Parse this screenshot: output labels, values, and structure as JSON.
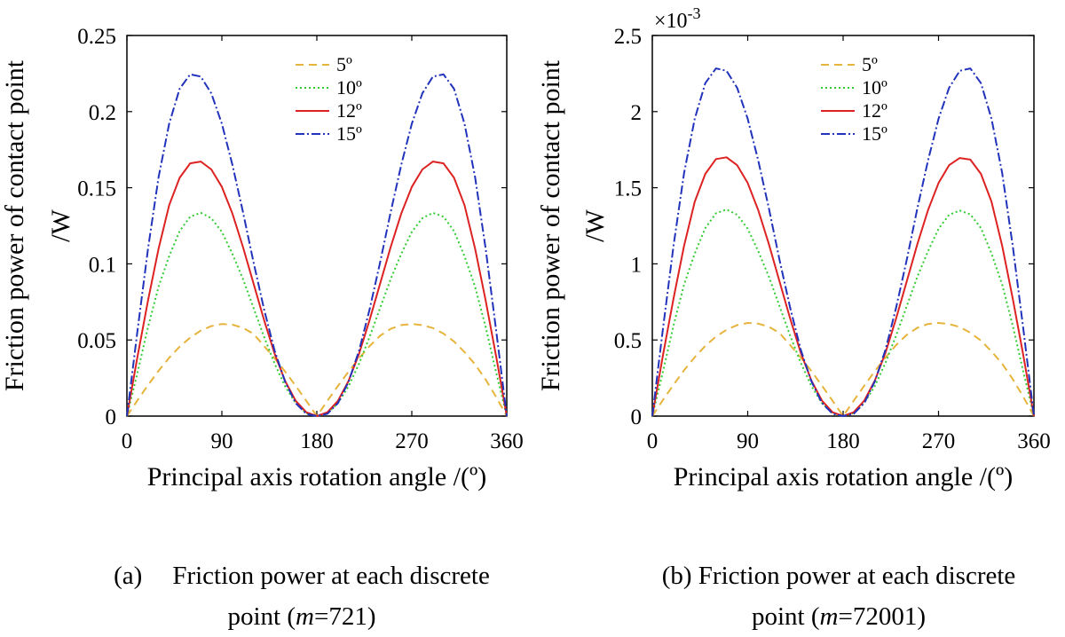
{
  "chart_data": [
    {
      "type": "line",
      "xlabel": "Principal axis rotation angle /(º)",
      "ylabel_line1": "Friction power of contact point",
      "ylabel_line2": "/W",
      "xlim": [
        0,
        360
      ],
      "ylim": [
        0,
        0.25
      ],
      "xticks": [
        0,
        90,
        180,
        270,
        360
      ],
      "xtick_labels": [
        "0",
        "90",
        "180",
        "270",
        "360"
      ],
      "yticks": [
        0,
        0.05,
        0.1,
        0.15,
        0.2,
        0.25
      ],
      "ytick_labels": [
        "0",
        "0.05",
        "0.1",
        "0.15",
        "0.2",
        "0.25"
      ],
      "exponent_label": "",
      "grid": false,
      "legend_position": "top-center",
      "x": [
        0,
        10,
        20,
        30,
        40,
        50,
        60,
        70,
        80,
        90,
        100,
        110,
        120,
        130,
        140,
        150,
        160,
        170,
        180,
        190,
        200,
        210,
        220,
        230,
        240,
        250,
        260,
        270,
        280,
        290,
        300,
        310,
        320,
        330,
        340,
        350,
        360
      ],
      "series": [
        {
          "name": "5º",
          "color": "#e6b43c",
          "dash": "9,6",
          "values": [
            0,
            0.0104,
            0.0204,
            0.0298,
            0.0383,
            0.0456,
            0.0516,
            0.0561,
            0.0591,
            0.0605,
            0.06,
            0.058,
            0.054,
            0.046,
            0.038,
            0.0292,
            0.0198,
            0.01,
            0.0,
            0.01,
            0.0198,
            0.0292,
            0.038,
            0.046,
            0.0528,
            0.0573,
            0.0598,
            0.0605,
            0.0598,
            0.0578,
            0.0542,
            0.049,
            0.042,
            0.034,
            0.024,
            0.0125,
            0
          ]
        },
        {
          "name": "10º",
          "color": "#33cc33",
          "dash": "2,3",
          "values": [
            0,
            0.0285,
            0.0585,
            0.085,
            0.105,
            0.1215,
            0.131,
            0.1335,
            0.13,
            0.121,
            0.1065,
            0.09,
            0.071,
            0.052,
            0.0345,
            0.0195,
            0.0085,
            0.002,
            0.0,
            0.002,
            0.0085,
            0.0195,
            0.0345,
            0.052,
            0.071,
            0.09,
            0.1065,
            0.121,
            0.13,
            0.1335,
            0.131,
            0.1215,
            0.105,
            0.085,
            0.0585,
            0.0285,
            0
          ]
        },
        {
          "name": "12º",
          "color": "#dd2222",
          "dash": "",
          "values": [
            0,
            0.039,
            0.076,
            0.11,
            0.1385,
            0.1565,
            0.166,
            0.1672,
            0.162,
            0.1505,
            0.133,
            0.111,
            0.087,
            0.063,
            0.041,
            0.023,
            0.01,
            0.0025,
            0.0,
            0.0025,
            0.01,
            0.023,
            0.041,
            0.063,
            0.087,
            0.111,
            0.133,
            0.1505,
            0.162,
            0.1672,
            0.166,
            0.1565,
            0.1385,
            0.11,
            0.076,
            0.039,
            0
          ]
        },
        {
          "name": "15º",
          "color": "#2233bb",
          "dash": "10,3,2,3",
          "values": [
            0,
            0.056,
            0.11,
            0.157,
            0.192,
            0.215,
            0.2245,
            0.223,
            0.212,
            0.192,
            0.165,
            0.134,
            0.101,
            0.07,
            0.043,
            0.0225,
            0.0085,
            0.0015,
            0.0,
            0.0015,
            0.0085,
            0.0225,
            0.043,
            0.07,
            0.101,
            0.134,
            0.165,
            0.192,
            0.212,
            0.223,
            0.2245,
            0.215,
            0.192,
            0.157,
            0.11,
            0.056,
            0
          ]
        }
      ]
    },
    {
      "type": "line",
      "xlabel": "Principal axis rotation angle /(º)",
      "ylabel_line1": "Friction power of contact point",
      "ylabel_line2": "/W",
      "xlim": [
        0,
        360
      ],
      "ylim": [
        0,
        2.5
      ],
      "xticks": [
        0,
        90,
        180,
        270,
        360
      ],
      "xtick_labels": [
        "0",
        "90",
        "180",
        "270",
        "360"
      ],
      "yticks": [
        0,
        0.5,
        1,
        1.5,
        2,
        2.5
      ],
      "ytick_labels": [
        "0",
        "0.5",
        "1",
        "1.5",
        "2",
        "2.5"
      ],
      "exponent_label": "×10",
      "exponent_power": "-3",
      "grid": false,
      "legend_position": "top-center",
      "x": [
        0,
        10,
        20,
        30,
        40,
        50,
        60,
        70,
        80,
        90,
        100,
        110,
        120,
        130,
        140,
        150,
        160,
        170,
        180,
        190,
        200,
        210,
        220,
        230,
        240,
        250,
        260,
        270,
        280,
        290,
        300,
        310,
        320,
        330,
        340,
        350,
        360
      ],
      "series": [
        {
          "name": "5º",
          "color": "#e6b43c",
          "dash": "9,6",
          "values": [
            0,
            0.105,
            0.206,
            0.301,
            0.387,
            0.461,
            0.522,
            0.567,
            0.598,
            0.612,
            0.607,
            0.587,
            0.546,
            0.466,
            0.385,
            0.296,
            0.2,
            0.101,
            0.0,
            0.101,
            0.2,
            0.296,
            0.385,
            0.466,
            0.534,
            0.58,
            0.605,
            0.612,
            0.605,
            0.585,
            0.548,
            0.496,
            0.425,
            0.344,
            0.243,
            0.126,
            0
          ]
        },
        {
          "name": "10º",
          "color": "#33cc33",
          "dash": "2,3",
          "values": [
            0,
            0.29,
            0.595,
            0.865,
            1.068,
            1.235,
            1.332,
            1.357,
            1.322,
            1.23,
            1.083,
            0.915,
            0.722,
            0.529,
            0.351,
            0.198,
            0.086,
            0.02,
            0.0,
            0.02,
            0.086,
            0.198,
            0.351,
            0.529,
            0.722,
            0.915,
            1.083,
            1.23,
            1.322,
            1.35,
            1.325,
            1.235,
            1.068,
            0.865,
            0.595,
            0.29,
            0
          ]
        },
        {
          "name": "12º",
          "color": "#dd2222",
          "dash": "",
          "values": [
            0,
            0.397,
            0.773,
            1.119,
            1.408,
            1.591,
            1.688,
            1.7,
            1.648,
            1.531,
            1.352,
            1.129,
            0.885,
            0.641,
            0.417,
            0.234,
            0.102,
            0.025,
            0.0,
            0.025,
            0.102,
            0.234,
            0.417,
            0.641,
            0.885,
            1.129,
            1.352,
            1.531,
            1.648,
            1.695,
            1.685,
            1.591,
            1.408,
            1.119,
            0.773,
            0.397,
            0
          ]
        },
        {
          "name": "15º",
          "color": "#2233bb",
          "dash": "10,3,2,3",
          "values": [
            0,
            0.57,
            1.119,
            1.597,
            1.953,
            2.187,
            2.284,
            2.268,
            2.156,
            1.953,
            1.678,
            1.363,
            1.027,
            0.712,
            0.437,
            0.229,
            0.086,
            0.015,
            0.0,
            0.015,
            0.086,
            0.229,
            0.437,
            0.712,
            1.027,
            1.363,
            1.678,
            1.953,
            2.156,
            2.268,
            2.284,
            2.187,
            1.953,
            1.597,
            1.119,
            0.57,
            0
          ]
        }
      ]
    }
  ],
  "captions": {
    "a": {
      "label": "(a)",
      "line1": "Friction power at each discrete",
      "line2_prefix": "point (",
      "line2_var": "m",
      "line2_suffix": "=721)"
    },
    "b": {
      "label": "(b)",
      "line1": "Friction power at each discrete",
      "line2_prefix": "point (",
      "line2_var": "m",
      "line2_suffix": "=72001)"
    }
  }
}
